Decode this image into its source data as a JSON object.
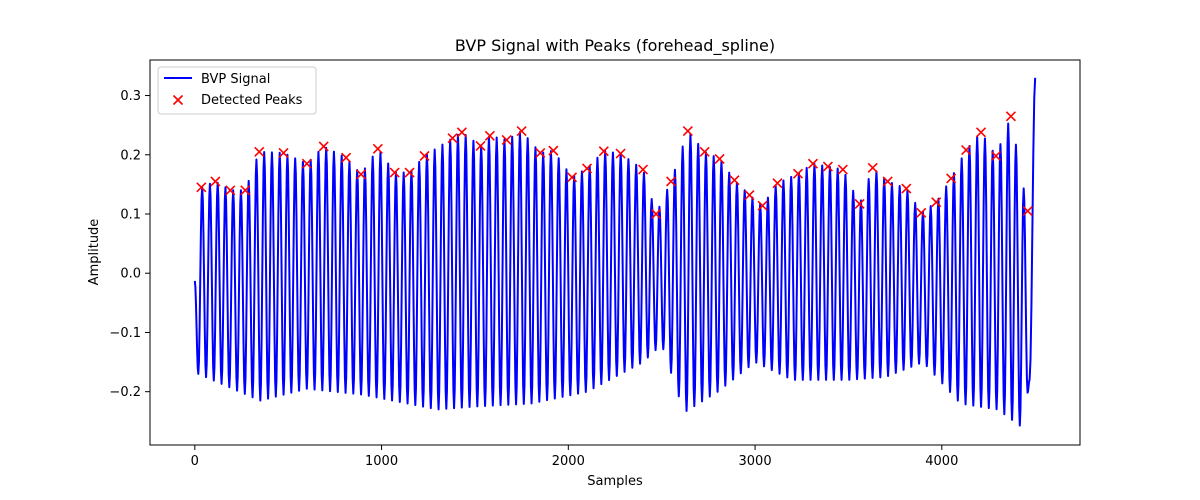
{
  "chart_data": {
    "type": "line",
    "title": "BVP Signal with Peaks (forehead_spline)",
    "xlabel": "Samples",
    "ylabel": "Amplitude",
    "xlim": [
      -240,
      4740
    ],
    "ylim": [
      -0.29,
      0.36
    ],
    "xticks": [
      0,
      1000,
      2000,
      3000,
      4000
    ],
    "yticks": [
      -0.2,
      -0.1,
      0.0,
      0.1,
      0.2,
      0.3
    ],
    "grid": false,
    "legend_position": "top-left",
    "series": [
      {
        "name": "BVP Signal",
        "color": "#0000ff",
        "period_samples": 41.5,
        "x_start": 0,
        "x_end": 4500,
        "start_value": -0.013,
        "end_value": 0.33,
        "trough_anchors": {
          "x": [
            20,
            350,
            600,
            900,
            1300,
            1500,
            1800,
            2100,
            2400,
            2500,
            2620,
            2800,
            3000,
            3200,
            3500,
            3700,
            3900,
            4100,
            4300,
            4430,
            4480
          ],
          "y": [
            -0.17,
            -0.215,
            -0.195,
            -0.205,
            -0.23,
            -0.225,
            -0.22,
            -0.2,
            -0.15,
            -0.12,
            -0.235,
            -0.2,
            -0.15,
            -0.18,
            -0.18,
            -0.175,
            -0.15,
            -0.22,
            -0.23,
            -0.26,
            -0.16
          ]
        }
      },
      {
        "name": "Detected Peaks",
        "color": "#ff0000",
        "type": "scatter",
        "marker": "x",
        "x": [
          35,
          110,
          190,
          270,
          345,
          475,
          600,
          690,
          810,
          890,
          980,
          1070,
          1150,
          1230,
          1380,
          1430,
          1530,
          1580,
          1670,
          1750,
          1850,
          1920,
          2020,
          2100,
          2190,
          2280,
          2400,
          2470,
          2550,
          2640,
          2730,
          2810,
          2890,
          2970,
          3040,
          3120,
          3230,
          3310,
          3390,
          3470,
          3560,
          3630,
          3710,
          3810,
          3890,
          3970,
          4050,
          4130,
          4210,
          4290,
          4370,
          4460
        ],
        "y": [
          0.145,
          0.155,
          0.14,
          0.14,
          0.205,
          0.203,
          0.185,
          0.214,
          0.195,
          0.167,
          0.21,
          0.17,
          0.17,
          0.198,
          0.228,
          0.238,
          0.215,
          0.232,
          0.225,
          0.24,
          0.203,
          0.207,
          0.162,
          0.177,
          0.206,
          0.202,
          0.175,
          0.1,
          0.155,
          0.24,
          0.205,
          0.193,
          0.157,
          0.132,
          0.114,
          0.152,
          0.168,
          0.185,
          0.18,
          0.175,
          0.117,
          0.178,
          0.155,
          0.143,
          0.102,
          0.12,
          0.16,
          0.208,
          0.238,
          0.198,
          0.265,
          0.105
        ]
      }
    ]
  }
}
